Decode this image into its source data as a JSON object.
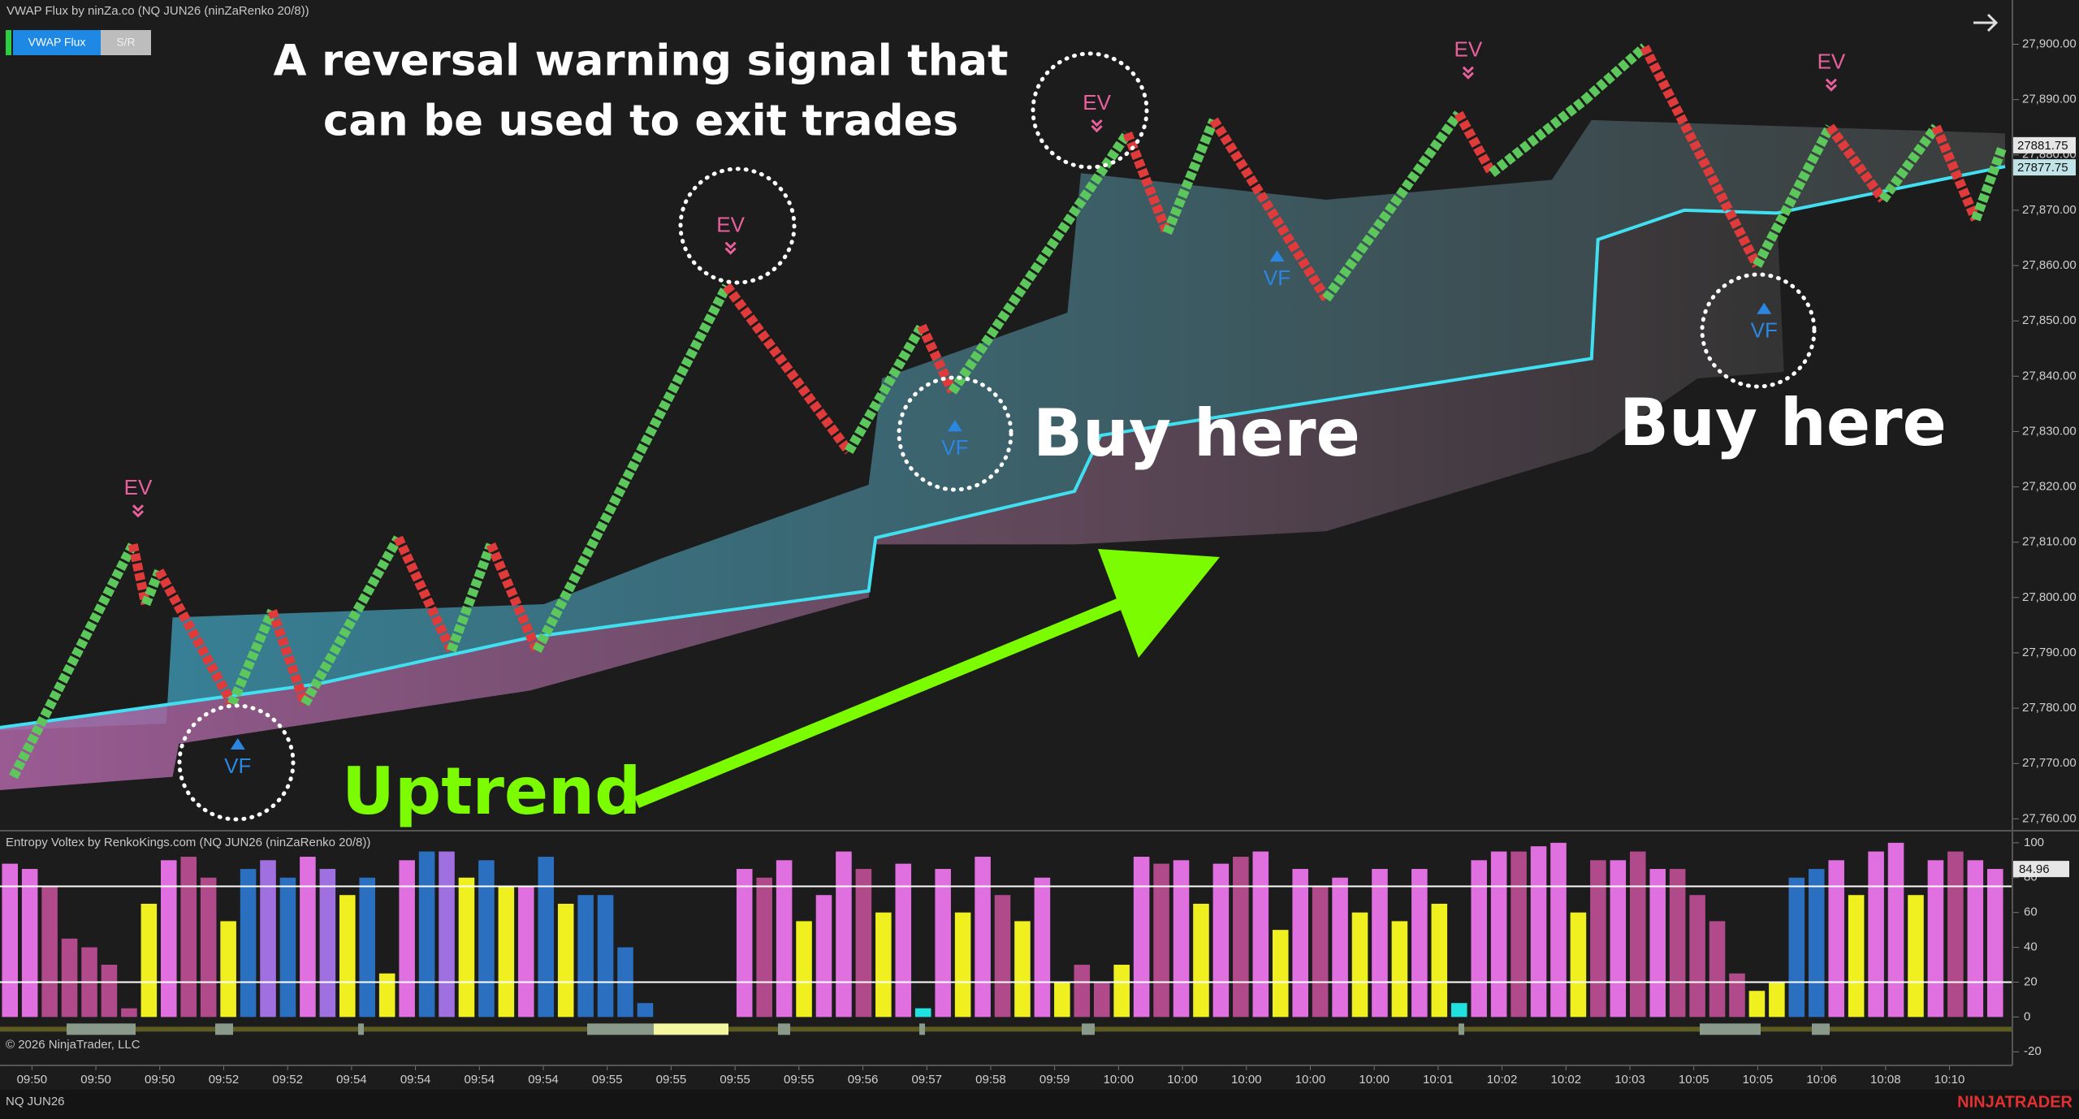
{
  "header": {
    "title": "VWAP Flux by ninZa.co (NQ JUN26 (ninZaRenko 20/8))",
    "buttons": [
      "VWAP Flux",
      "S/R"
    ]
  },
  "chart_data": [
    {
      "type": "renko",
      "xlim": [
        -0.5,
        30.87
      ],
      "ylim": [
        27758,
        27908
      ],
      "yticks": [
        {
          "value": 27900,
          "label": "27,900.00"
        },
        {
          "value": 27890,
          "label": "27,890.00"
        },
        {
          "value": 27880,
          "label": "27,880.00"
        },
        {
          "value": 27870,
          "label": "27,870.00"
        },
        {
          "value": 27860,
          "label": "27,860.00"
        },
        {
          "value": 27850,
          "label": "27,850.00"
        },
        {
          "value": 27840,
          "label": "27,840.00"
        },
        {
          "value": 27830,
          "label": "27,830.00"
        },
        {
          "value": 27820,
          "label": "27,820.00"
        },
        {
          "value": 27810,
          "label": "27,810.00"
        },
        {
          "value": 27800,
          "label": "27,800.00"
        },
        {
          "value": 27790,
          "label": "27,790.00"
        },
        {
          "value": 27780,
          "label": "27,780.00"
        },
        {
          "value": 27770,
          "label": "27,770.00"
        },
        {
          "value": 27760,
          "label": "27,760.00"
        }
      ],
      "up_color": "#5cc85c",
      "down_color": "#e03a3a",
      "price": {
        "x": [
          -0.29,
          1.58,
          1.78,
          1.99,
          3.13,
          3.76,
          4.27,
          5.73,
          6.56,
          7.18,
          7.9,
          10.87,
          12.78,
          13.92,
          14.4,
          17.14,
          17.76,
          18.49,
          20.25,
          22.32,
          22.84,
          24.29,
          25.23,
          26.99,
          28.13,
          28.96,
          29.79,
          30.41,
          30.83
        ],
        "values": [
          27767.6,
          27809.6,
          27798.8,
          27804.8,
          27780.8,
          27797.6,
          27780.8,
          27810.8,
          27790.4,
          27809.6,
          27790.4,
          27856.3,
          27826.4,
          27849.1,
          27837.2,
          27883.9,
          27865.9,
          27886.3,
          27854.0,
          27887.5,
          27876.7,
          27889.9,
          27899.5,
          27860.0,
          27885.1,
          27871.9,
          27885.1,
          27868.3,
          27881.5
        ]
      },
      "vwap_color": "#40e0f0",
      "vwap": {
        "x": [
          -0.5,
          4.48,
          7.8,
          13.09,
          13.2,
          16.31,
          16.72,
          24.4,
          24.5,
          25.85,
          27.3,
          30.87
        ],
        "values": [
          27776.5,
          27784.4,
          27792.8,
          27801.2,
          27810.8,
          27819.2,
          27829.3,
          27843.2,
          27864.7,
          27870.0,
          27869.5,
          27877.9
        ]
      },
      "band_upper": {
        "x": [
          -0.5,
          2.1,
          2.2,
          8.01,
          9.88,
          13.09,
          13.3,
          16.2,
          16.41,
          20.25,
          23.78,
          24.4,
          30.87
        ],
        "values": [
          27776.0,
          27777.2,
          27796.4,
          27798.8,
          27807.2,
          27820.4,
          27839.6,
          27851.5,
          27876.7,
          27871.9,
          27875.5,
          27886.3,
          27883.9
        ]
      },
      "band_lower": {
        "x": [
          -0.5,
          2.2,
          2.3,
          7.8,
          13.09,
          13.2,
          16.31,
          20.25,
          24.4,
          26.06,
          27.41
        ],
        "values": [
          27765.2,
          27767.6,
          27773.6,
          27783.2,
          27800.0,
          27809.6,
          27809.6,
          27812.0,
          27826.4,
          27839.6,
          27840.8
        ]
      },
      "signals": [
        {
          "label": "EV",
          "x": 1.66,
          "y": 27819.6
        },
        {
          "label": "EV",
          "x": 10.93,
          "y": 27867.1
        },
        {
          "label": "EV",
          "x": 16.66,
          "y": 27889.2
        },
        {
          "label": "EV",
          "x": 22.47,
          "y": 27898.8
        },
        {
          "label": "EV",
          "x": 28.15,
          "y": 27896.6
        },
        {
          "label": "VF",
          "x": 3.22,
          "y": 27769.3
        },
        {
          "label": "VF",
          "x": 14.44,
          "y": 27826.8
        },
        {
          "label": "VF",
          "x": 19.48,
          "y": 27857.5
        },
        {
          "label": "VF",
          "x": 27.1,
          "y": 27848.0
        }
      ],
      "price_markers": [
        27881.75,
        27877.75
      ]
    },
    {
      "type": "bar",
      "title": "Entropy Voltex by RenkoKings.com (NQ JUN26 (ninZaRenko 20/8))",
      "ylim": [
        -25,
        106
      ],
      "yticks": [
        100,
        80,
        60,
        40,
        20,
        0,
        -20
      ],
      "levels": [
        75,
        20
      ],
      "marker": 84.96,
      "values": [
        88,
        85,
        75,
        45,
        40,
        30,
        5,
        65,
        90,
        92,
        80,
        55,
        85,
        90,
        80,
        92,
        85,
        70,
        80,
        25,
        90,
        95,
        95,
        80,
        90,
        75,
        75,
        92,
        65,
        70,
        70,
        40,
        8,
        0,
        0,
        0,
        0,
        85,
        80,
        90,
        55,
        70,
        95,
        85,
        60,
        88,
        5,
        85,
        60,
        92,
        70,
        55,
        80,
        20,
        30,
        20,
        30,
        92,
        88,
        90,
        65,
        88,
        92,
        95,
        50,
        85,
        75,
        80,
        60,
        85,
        55,
        85,
        65,
        8,
        90,
        95,
        95,
        98,
        100,
        60,
        90,
        90,
        95,
        85,
        85,
        70,
        55,
        25,
        15,
        20,
        80,
        85,
        90,
        70,
        95,
        100,
        70,
        90,
        95,
        90,
        85
      ],
      "colors": [
        "#e070e0",
        "#e070e0",
        "#b04a8a",
        "#b04a8a",
        "#b04a8a",
        "#b04a8a",
        "#b04a8a",
        "#f0f020",
        "#e070e0",
        "#b04a8a",
        "#b04a8a",
        "#f0f020",
        "#2a6fc0",
        "#a070e0",
        "#2a6fc0",
        "#e070e0",
        "#a070e0",
        "#f0f020",
        "#2a6fc0",
        "#f0f020",
        "#e070e0",
        "#2a6fc0",
        "#a070e0",
        "#f0f020",
        "#2a6fc0",
        "#f0f020",
        "#e070e0",
        "#2a6fc0",
        "#f0f020",
        "#2a6fc0",
        "#2a6fc0",
        "#2a6fc0",
        "#2a6fc0",
        "#2a6fc0",
        "#2a6fc0",
        "#2a6fc0",
        "#2a6fc0",
        "#e070e0",
        "#b04a8a",
        "#e070e0",
        "#f0f020",
        "#e070e0",
        "#e070e0",
        "#b04a8a",
        "#f0f020",
        "#e070e0",
        "#20e0e0",
        "#e070e0",
        "#f0f020",
        "#e070e0",
        "#b04a8a",
        "#f0f020",
        "#e070e0",
        "#f0f020",
        "#b04a8a",
        "#b04a8a",
        "#f0f020",
        "#e070e0",
        "#b04a8a",
        "#e070e0",
        "#f0f020",
        "#e070e0",
        "#b04a8a",
        "#e070e0",
        "#f0f020",
        "#e070e0",
        "#b04a8a",
        "#e070e0",
        "#f0f020",
        "#e070e0",
        "#f0f020",
        "#e070e0",
        "#f0f020",
        "#20e0e0",
        "#e070e0",
        "#e070e0",
        "#b04a8a",
        "#e070e0",
        "#e070e0",
        "#f0f020",
        "#b04a8a",
        "#e070e0",
        "#b04a8a",
        "#e070e0",
        "#b04a8a",
        "#b04a8a",
        "#b04a8a",
        "#b04a8a",
        "#f0f020",
        "#f0f020",
        "#2a6fc0",
        "#2a6fc0",
        "#e070e0",
        "#f0f020",
        "#e070e0",
        "#e070e0",
        "#f0f020",
        "#e070e0",
        "#b04a8a",
        "#e070e0",
        "#e070e0"
      ],
      "xlim": [
        -0.5,
        30.87
      ],
      "xticks": [
        {
          "value": 0,
          "label": "09:50"
        },
        {
          "value": 1,
          "label": "09:50"
        },
        {
          "value": 2,
          "label": "09:50"
        },
        {
          "value": 3,
          "label": "09:52"
        },
        {
          "value": 4,
          "label": "09:52"
        },
        {
          "value": 5,
          "label": "09:54"
        },
        {
          "value": 6,
          "label": "09:54"
        },
        {
          "value": 7,
          "label": "09:54"
        },
        {
          "value": 8,
          "label": "09:54"
        },
        {
          "value": 9,
          "label": "09:55"
        },
        {
          "value": 10,
          "label": "09:55"
        },
        {
          "value": 11,
          "label": "09:55"
        },
        {
          "value": 12,
          "label": "09:55"
        },
        {
          "value": 13,
          "label": "09:56"
        },
        {
          "value": 14,
          "label": "09:57"
        },
        {
          "value": 15,
          "label": "09:58"
        },
        {
          "value": 16,
          "label": "09:59"
        },
        {
          "value": 17,
          "label": "10:00"
        },
        {
          "value": 18,
          "label": "10:00"
        },
        {
          "value": 19,
          "label": "10:00"
        },
        {
          "value": 20,
          "label": "10:00"
        },
        {
          "value": 21,
          "label": "10:00"
        },
        {
          "value": 22,
          "label": "10:01"
        },
        {
          "value": 23,
          "label": "10:02"
        },
        {
          "value": 24,
          "label": "10:02"
        },
        {
          "value": 25,
          "label": "10:03"
        },
        {
          "value": 26,
          "label": "10:05"
        },
        {
          "value": 27,
          "label": "10:05"
        },
        {
          "value": 28,
          "label": "10:06"
        },
        {
          "value": 29,
          "label": "10:08"
        },
        {
          "value": 30,
          "label": "10:10"
        }
      ]
    }
  ],
  "annotations": {
    "headline": [
      "A reversal warning signal that",
      "can be used to exit trades"
    ],
    "buy": [
      "Buy here",
      "Buy here"
    ],
    "trend": "Uptrend"
  },
  "footer": {
    "copyright": "© 2026 NinjaTrader, LLC",
    "instrument": "NQ JUN26",
    "brand": "NINJATRADER"
  }
}
